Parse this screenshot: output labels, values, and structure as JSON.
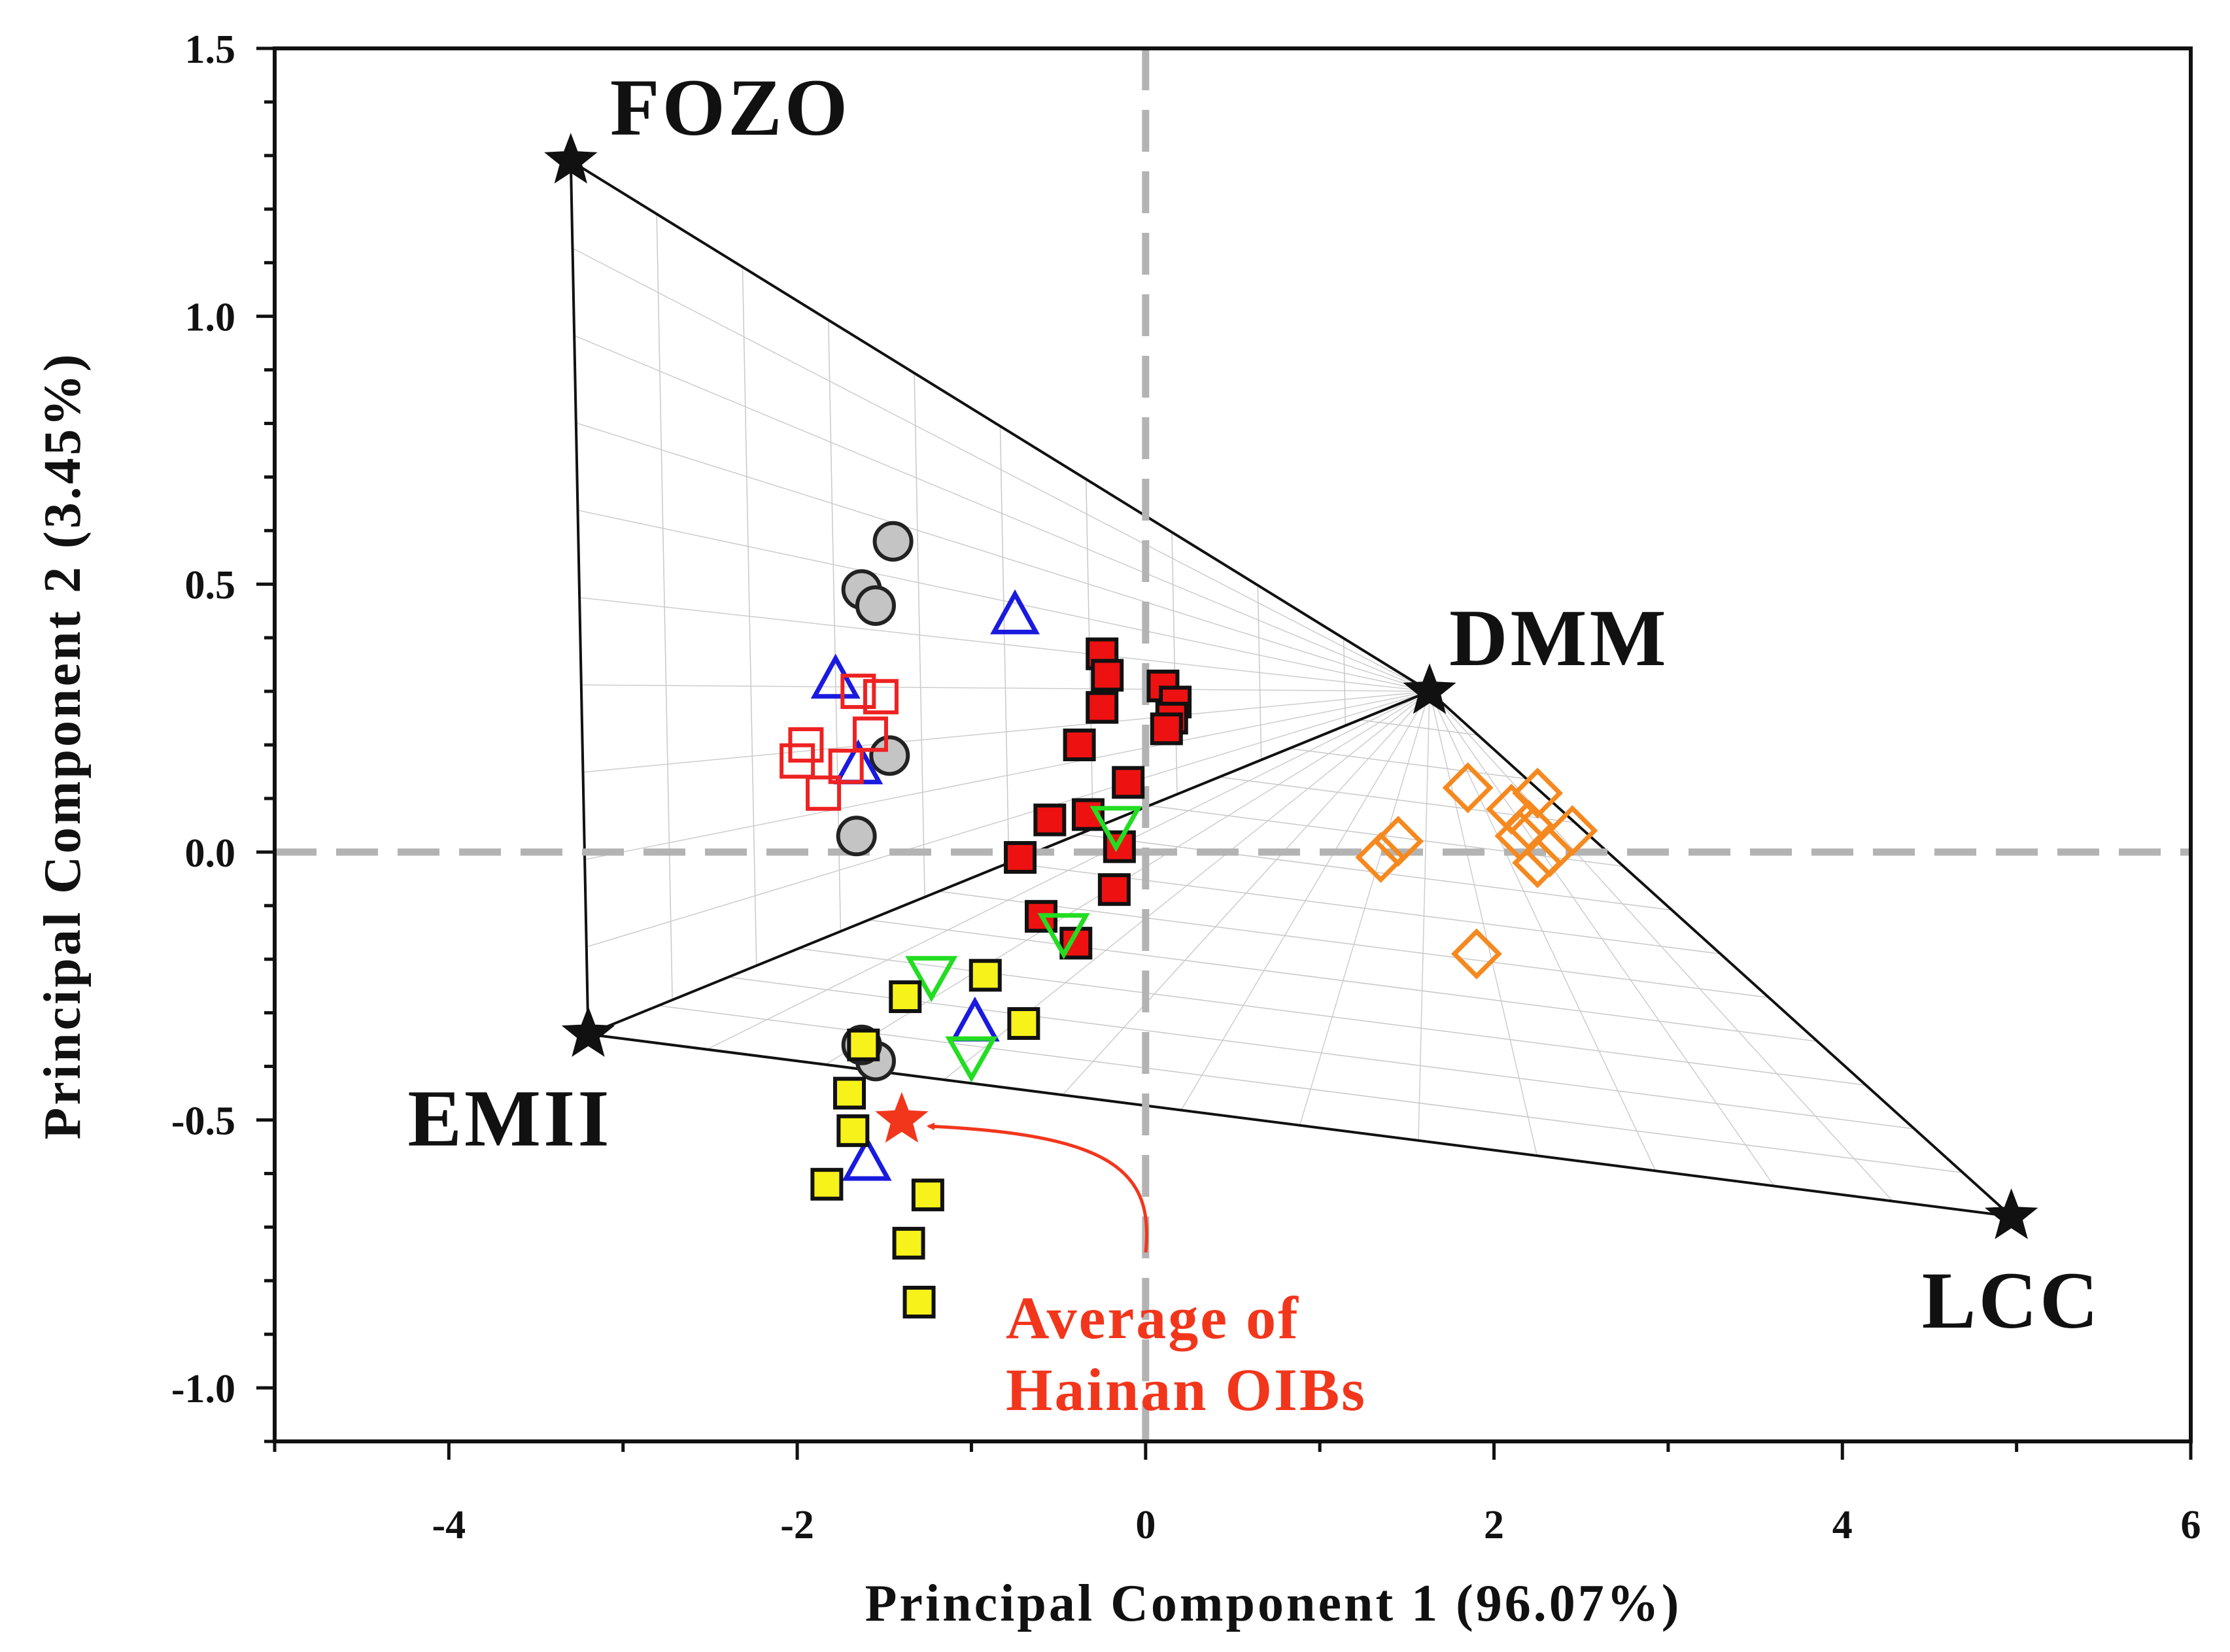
{
  "chart_data": {
    "type": "scatter",
    "xlabel": "Principal Component 1 (96.07%)",
    "ylabel": "Principal Component 2 (3.45%)",
    "xlim": [
      -5,
      6
    ],
    "ylim": [
      -1.1,
      1.5
    ],
    "xticks": [
      -4,
      -2,
      0,
      2,
      4,
      6
    ],
    "yticks": [
      1.5,
      1.0,
      0.5,
      0.0,
      -0.5,
      -1.0
    ],
    "xtick_labels": [
      "-4",
      "-2",
      "0",
      "2",
      "4",
      "6"
    ],
    "ytick_labels": [
      "1.5",
      "1.0",
      "0.5",
      "0.0",
      "-0.5",
      "-1.0"
    ],
    "reference_lines": {
      "x": 0,
      "y": 0,
      "color": "#b3b3b3"
    },
    "end_members": [
      {
        "name": "FOZO",
        "x": -3.3,
        "y": 1.29
      },
      {
        "name": "DMM",
        "x": 1.63,
        "y": 0.3
      },
      {
        "name": "EMII",
        "x": -3.2,
        "y": -0.34
      },
      {
        "name": "LCC",
        "x": 4.97,
        "y": -0.68
      }
    ],
    "series": [
      {
        "name": "gray circles",
        "marker": "circle",
        "fill": "#c4c4c4",
        "stroke": "#222222",
        "points": [
          [
            -1.45,
            0.58
          ],
          [
            -1.63,
            0.49
          ],
          [
            -1.55,
            0.46
          ],
          [
            -1.47,
            0.18
          ],
          [
            -1.66,
            0.03
          ],
          [
            -1.55,
            -0.39
          ],
          [
            -1.63,
            -0.36
          ]
        ]
      },
      {
        "name": "blue open triangles",
        "marker": "triangle",
        "fill": "none",
        "stroke": "#1a1adf",
        "points": [
          [
            -0.75,
            0.44
          ],
          [
            -1.78,
            0.32
          ],
          [
            -1.65,
            0.16
          ],
          [
            -0.98,
            -0.32
          ],
          [
            -1.6,
            -0.58
          ]
        ]
      },
      {
        "name": "red open squares",
        "marker": "square",
        "fill": "none",
        "stroke": "#ee2222",
        "points": [
          [
            -1.65,
            0.3
          ],
          [
            -1.52,
            0.29
          ],
          [
            -1.58,
            0.22
          ],
          [
            -1.95,
            0.2
          ],
          [
            -2.0,
            0.17
          ],
          [
            -1.72,
            0.16
          ],
          [
            -1.85,
            0.11
          ]
        ]
      },
      {
        "name": "red filled squares",
        "marker": "square",
        "fill": "#ee1111",
        "stroke": "#111111",
        "points": [
          [
            -0.25,
            0.37
          ],
          [
            -0.22,
            0.33
          ],
          [
            0.1,
            0.31
          ],
          [
            0.17,
            0.28
          ],
          [
            -0.25,
            0.27
          ],
          [
            0.15,
            0.25
          ],
          [
            0.12,
            0.23
          ],
          [
            -0.38,
            0.2
          ],
          [
            -0.1,
            0.13
          ],
          [
            -0.33,
            0.07
          ],
          [
            -0.55,
            0.06
          ],
          [
            -0.72,
            -0.01
          ],
          [
            -0.15,
            0.01
          ],
          [
            -0.6,
            -0.12
          ],
          [
            -0.4,
            -0.17
          ],
          [
            -0.18,
            -0.07
          ]
        ]
      },
      {
        "name": "green open inverted triangles",
        "marker": "invtriangle",
        "fill": "none",
        "stroke": "#22dd22",
        "points": [
          [
            -0.17,
            0.05
          ],
          [
            -0.47,
            -0.15
          ],
          [
            -1.23,
            -0.23
          ],
          [
            -1.0,
            -0.38
          ]
        ]
      },
      {
        "name": "yellow filled squares",
        "marker": "square",
        "fill": "#f7f21a",
        "stroke": "#111111",
        "points": [
          [
            -0.92,
            -0.23
          ],
          [
            -1.38,
            -0.27
          ],
          [
            -0.7,
            -0.32
          ],
          [
            -1.62,
            -0.36
          ],
          [
            -1.7,
            -0.45
          ],
          [
            -1.68,
            -0.52
          ],
          [
            -1.83,
            -0.62
          ],
          [
            -1.25,
            -0.64
          ],
          [
            -1.36,
            -0.73
          ],
          [
            -1.3,
            -0.84
          ]
        ]
      },
      {
        "name": "orange open diamonds",
        "marker": "diamond",
        "fill": "none",
        "stroke": "#f5891f",
        "points": [
          [
            1.85,
            0.12
          ],
          [
            2.25,
            0.11
          ],
          [
            2.1,
            0.08
          ],
          [
            2.2,
            0.05
          ],
          [
            2.45,
            0.04
          ],
          [
            2.15,
            0.03
          ],
          [
            2.32,
            0.0
          ],
          [
            2.25,
            -0.02
          ],
          [
            1.45,
            0.02
          ],
          [
            1.35,
            -0.01
          ],
          [
            1.9,
            -0.19
          ]
        ]
      }
    ],
    "annotation": {
      "text_lines": [
        "Average of",
        "Hainan OIBs"
      ],
      "point": {
        "x": -1.4,
        "y": -0.5
      },
      "color": "#f2361c"
    }
  }
}
